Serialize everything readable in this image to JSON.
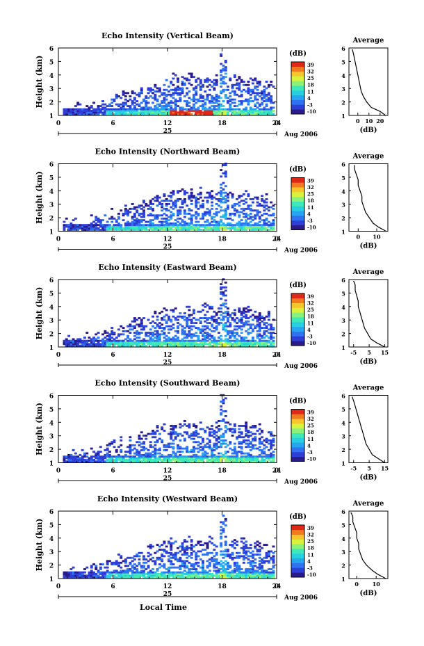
{
  "common": {
    "ylabel": "Height (km)",
    "y_ticks": [
      "1",
      "2",
      "3",
      "4",
      "5",
      "6"
    ],
    "x_ticks": [
      "0",
      "6",
      "12",
      "18",
      "24"
    ],
    "date_label": "25",
    "month_label": "Aug 2006",
    "colorbar_unit": "(dB)",
    "colorbar_ticks": [
      "-10",
      "-3",
      "4",
      "11",
      "18",
      "25",
      "32",
      "39"
    ],
    "avg_title": "Average",
    "avg_xlabel": "(dB)",
    "time_label": "Local Time"
  },
  "colors": {
    "colormap": [
      "#2b1a8a",
      "#2e3fd6",
      "#2f72f2",
      "#27a5ee",
      "#27cfe0",
      "#3fe8b8",
      "#8af27a",
      "#d8f23e",
      "#f6c62c",
      "#f47a20",
      "#e02818"
    ]
  },
  "chart_data": [
    {
      "type": "heatmap",
      "title": "Echo Intensity (Vertical Beam)",
      "ylim": [
        1,
        6
      ],
      "xlim": [
        0,
        24
      ],
      "color_range": [
        -10,
        39
      ],
      "average": {
        "type": "line",
        "xticks": [
          "0",
          "10",
          "20"
        ],
        "xlim": [
          -8,
          27
        ],
        "height": [
          1.0,
          1.3,
          1.6,
          2.0,
          2.4,
          2.8,
          3.2,
          3.6,
          4.0,
          4.4,
          4.8,
          5.2,
          5.6,
          5.9
        ],
        "db": [
          25,
          20,
          12,
          8,
          5,
          3,
          2,
          1,
          0,
          -1,
          -2,
          -3,
          -4,
          -5
        ]
      }
    },
    {
      "type": "heatmap",
      "title": "Echo Intensity (Northward Beam)",
      "ylim": [
        1,
        6
      ],
      "xlim": [
        0,
        24
      ],
      "color_range": [
        -10,
        39
      ],
      "average": {
        "type": "line",
        "xticks": [
          "0",
          "10"
        ],
        "xlim": [
          -5,
          16
        ],
        "height": [
          1.0,
          1.3,
          1.6,
          2.0,
          2.4,
          2.8,
          3.2,
          3.6,
          4.0,
          4.4,
          4.8,
          5.2,
          5.6,
          5.9
        ],
        "db": [
          15,
          11,
          8,
          6,
          4,
          3,
          2,
          2,
          1,
          0,
          0,
          -1,
          -2,
          -2
        ]
      }
    },
    {
      "type": "heatmap",
      "title": "Echo Intensity (Eastward Beam)",
      "ylim": [
        1,
        6
      ],
      "xlim": [
        0,
        24
      ],
      "color_range": [
        -10,
        39
      ],
      "average": {
        "type": "line",
        "xticks": [
          "-5",
          "5",
          "15"
        ],
        "xlim": [
          -8,
          17
        ],
        "height": [
          1.0,
          1.3,
          1.6,
          2.0,
          2.4,
          2.8,
          3.2,
          3.6,
          4.0,
          4.4,
          4.8,
          5.2,
          5.6,
          5.9
        ],
        "db": [
          15,
          10,
          6,
          4,
          2,
          1,
          0,
          -1,
          -2,
          -2,
          -3,
          -4,
          -4,
          -5
        ]
      }
    },
    {
      "type": "heatmap",
      "title": "Echo Intensity (Southward Beam)",
      "ylim": [
        1,
        6
      ],
      "xlim": [
        0,
        24
      ],
      "color_range": [
        -10,
        39
      ],
      "average": {
        "type": "line",
        "xticks": [
          "-5",
          "5",
          "15"
        ],
        "xlim": [
          -8,
          17
        ],
        "height": [
          1.0,
          1.3,
          1.6,
          2.0,
          2.4,
          2.8,
          3.2,
          3.6,
          4.0,
          4.4,
          4.8,
          5.2,
          5.6,
          5.9
        ],
        "db": [
          15,
          11,
          7,
          5,
          3,
          2,
          1,
          0,
          -1,
          -2,
          -3,
          -4,
          -5,
          -6
        ]
      }
    },
    {
      "type": "heatmap",
      "title": "Echo Intensity (Westward Beam)",
      "ylim": [
        1,
        6
      ],
      "xlim": [
        0,
        24
      ],
      "color_range": [
        -10,
        39
      ],
      "average": {
        "type": "line",
        "xticks": [
          "0",
          "10"
        ],
        "xlim": [
          -4,
          16
        ],
        "height": [
          1.0,
          1.3,
          1.6,
          2.0,
          2.4,
          2.8,
          3.2,
          3.6,
          4.0,
          4.4,
          4.8,
          5.2,
          5.6,
          5.9
        ],
        "db": [
          15,
          11,
          8,
          5,
          3,
          2,
          1,
          1,
          0,
          0,
          -1,
          -2,
          -2,
          -3
        ]
      }
    }
  ]
}
